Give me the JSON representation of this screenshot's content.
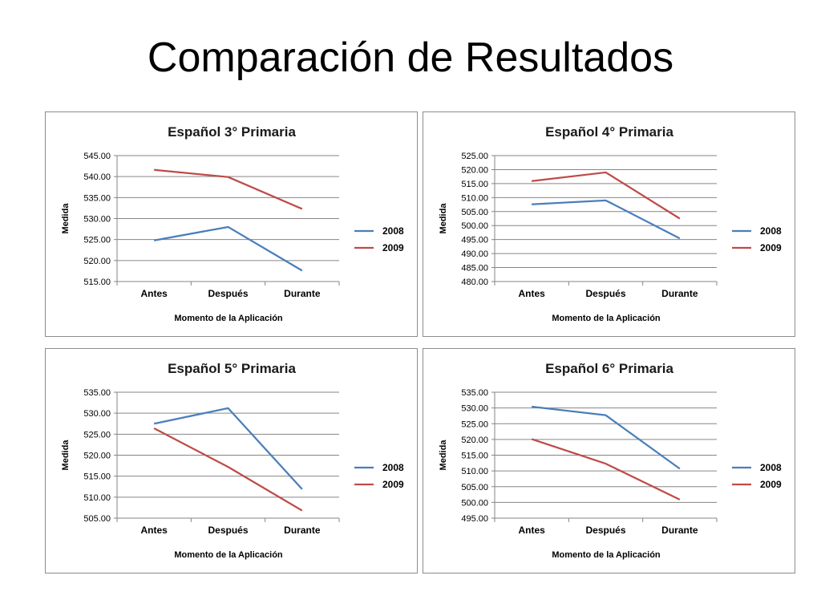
{
  "slide": {
    "title": "Comparación de Resultados"
  },
  "chart_data": [
    {
      "type": "line",
      "title": "Español  3° Primaria",
      "xlabel": "Momento de la Aplicación",
      "ylabel": "Medida",
      "categories": [
        "Antes",
        "Después",
        "Durante"
      ],
      "ylim": [
        515,
        545
      ],
      "ystep": 5,
      "yticks": [
        "515.00",
        "520.00",
        "525.00",
        "530.00",
        "535.00",
        "540.00",
        "545.00"
      ],
      "grid": true,
      "legend_position": "right",
      "series": [
        {
          "name": "2008",
          "color": "#4a7ebb",
          "values": [
            524.8,
            528.0,
            517.6
          ]
        },
        {
          "name": "2009",
          "color": "#be4b48",
          "values": [
            541.6,
            539.9,
            532.3
          ]
        }
      ]
    },
    {
      "type": "line",
      "title": "Español  4° Primaria",
      "xlabel": "Momento de la Aplicación",
      "ylabel": "Medida",
      "categories": [
        "Antes",
        "Después",
        "Durante"
      ],
      "ylim": [
        480,
        525
      ],
      "ystep": 5,
      "yticks": [
        "480.00",
        "485.00",
        "490.00",
        "495.00",
        "500.00",
        "505.00",
        "510.00",
        "515.00",
        "520.00",
        "525.00"
      ],
      "grid": true,
      "legend_position": "right",
      "series": [
        {
          "name": "2008",
          "color": "#4a7ebb",
          "values": [
            507.6,
            509.0,
            495.4
          ]
        },
        {
          "name": "2009",
          "color": "#be4b48",
          "values": [
            515.9,
            519.0,
            502.5
          ]
        }
      ]
    },
    {
      "type": "line",
      "title": "Español  5° Primaria",
      "xlabel": "Momento de la Aplicación",
      "ylabel": "Medida",
      "categories": [
        "Antes",
        "Después",
        "Durante"
      ],
      "ylim": [
        505,
        535
      ],
      "ystep": 5,
      "yticks": [
        "505.00",
        "510.00",
        "515.00",
        "520.00",
        "525.00",
        "530.00",
        "535.00"
      ],
      "grid": true,
      "legend_position": "right",
      "series": [
        {
          "name": "2008",
          "color": "#4a7ebb",
          "values": [
            527.5,
            531.2,
            511.9
          ]
        },
        {
          "name": "2009",
          "color": "#be4b48",
          "values": [
            526.4,
            517.2,
            506.8
          ]
        }
      ]
    },
    {
      "type": "line",
      "title": "Español  6° Primaria",
      "xlabel": "Momento de la Aplicación",
      "ylabel": "Medida",
      "categories": [
        "Antes",
        "Después",
        "Durante"
      ],
      "ylim": [
        495,
        535
      ],
      "ystep": 5,
      "yticks": [
        "495.00",
        "500.00",
        "505.00",
        "510.00",
        "515.00",
        "520.00",
        "525.00",
        "530.00",
        "535.00"
      ],
      "grid": true,
      "legend_position": "right",
      "series": [
        {
          "name": "2008",
          "color": "#4a7ebb",
          "values": [
            530.4,
            527.7,
            510.7
          ]
        },
        {
          "name": "2009",
          "color": "#be4b48",
          "values": [
            520.1,
            512.3,
            500.9
          ]
        }
      ]
    }
  ]
}
